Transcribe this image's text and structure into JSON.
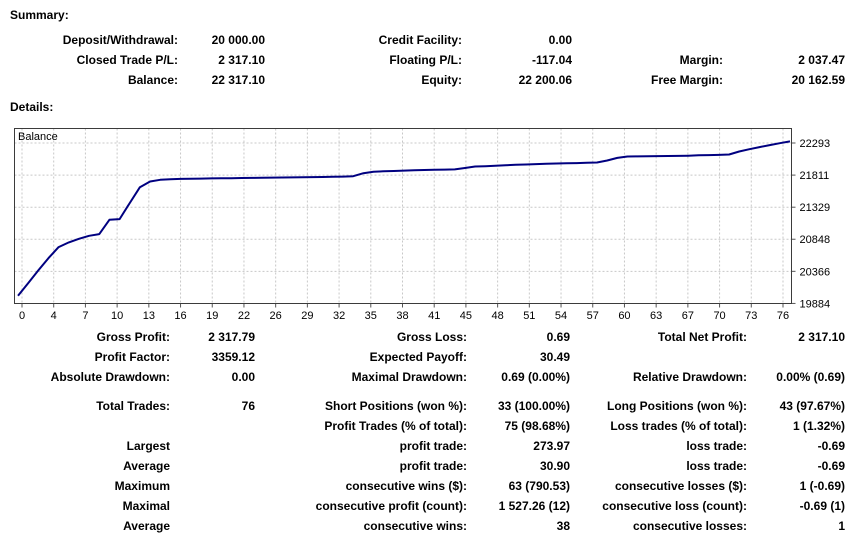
{
  "summary": {
    "heading": "Summary:",
    "rows": [
      [
        "Deposit/Withdrawal:",
        "20 000.00",
        "Credit Facility:",
        "0.00",
        "",
        ""
      ],
      [
        "Closed Trade P/L:",
        "2 317.10",
        "Floating P/L:",
        "-117.04",
        "Margin:",
        "2 037.47"
      ],
      [
        "Balance:",
        "22 317.10",
        "Equity:",
        "22 200.06",
        "Free Margin:",
        "20 162.59"
      ]
    ]
  },
  "details": {
    "heading": "Details:",
    "rows_top": [
      [
        "Gross Profit:",
        "2 317.79",
        "Gross Loss:",
        "0.69",
        "Total Net Profit:",
        "2 317.10"
      ],
      [
        "Profit Factor:",
        "3359.12",
        "Expected Payoff:",
        "30.49",
        "",
        ""
      ],
      [
        "Absolute Drawdown:",
        "0.00",
        "Maximal Drawdown:",
        "0.69 (0.00%)",
        "Relative Drawdown:",
        "0.00% (0.69)"
      ]
    ],
    "rows_bottom": [
      [
        "Total Trades:",
        "76",
        "Short Positions (won %):",
        "33 (100.00%)",
        "Long Positions (won %):",
        "43 (97.67%)"
      ],
      [
        "",
        "",
        "Profit Trades (% of total):",
        "75 (98.68%)",
        "Loss trades (% of total):",
        "1 (1.32%)"
      ],
      [
        "Largest",
        "",
        "profit trade:",
        "273.97",
        "loss trade:",
        "-0.69"
      ],
      [
        "Average",
        "",
        "profit trade:",
        "30.90",
        "loss trade:",
        "-0.69"
      ],
      [
        "Maximum",
        "",
        "consecutive wins ($):",
        "63 (790.53)",
        "consecutive losses ($):",
        "1 (-0.69)"
      ],
      [
        "Maximal",
        "",
        "consecutive profit (count):",
        "1 527.26 (12)",
        "consecutive loss (count):",
        "-0.69 (1)"
      ],
      [
        "Average",
        "",
        "consecutive wins:",
        "38",
        "consecutive losses:",
        "1"
      ]
    ]
  },
  "chart_data": {
    "type": "line",
    "title": "Balance",
    "legend_label": "Balance",
    "xlabel": "",
    "ylabel": "",
    "grid": true,
    "x_tick_labels": [
      "0",
      "4",
      "7",
      "10",
      "13",
      "16",
      "19",
      "22",
      "26",
      "29",
      "32",
      "35",
      "38",
      "41",
      "45",
      "48",
      "51",
      "54",
      "57",
      "60",
      "63",
      "67",
      "70",
      "73",
      "76"
    ],
    "y_tick_labels": [
      "22293",
      "21811",
      "21329",
      "20848",
      "20366",
      "19884"
    ],
    "y_ticks": [
      22293,
      21811,
      21329,
      20848,
      20366,
      19884
    ],
    "ylim": [
      19884,
      22517
    ],
    "xlim": [
      0,
      76
    ],
    "series": [
      {
        "name": "Balance",
        "x_start": 0,
        "values": [
          20000,
          20190,
          20380,
          20565,
          20730,
          20800,
          20855,
          20900,
          20925,
          21140,
          21150,
          21390,
          21630,
          21715,
          21740,
          21750,
          21754,
          21757,
          21759,
          21761,
          21763,
          21765,
          21767,
          21769,
          21771,
          21773,
          21775,
          21777,
          21779,
          21781,
          21783,
          21785,
          21788,
          21795,
          21840,
          21862,
          21868,
          21873,
          21878,
          21883,
          21887,
          21890,
          21893,
          21896,
          21918,
          21940,
          21945,
          21950,
          21960,
          21965,
          21970,
          21976,
          21981,
          21985,
          21988,
          21991,
          21995,
          22000,
          22030,
          22070,
          22090,
          22092,
          22094,
          22096,
          22098,
          22100,
          22102,
          22108,
          22112,
          22115,
          22120,
          22165,
          22200,
          22232,
          22262,
          22290,
          22317
        ]
      }
    ],
    "colors": {
      "line": "#000080",
      "grid": "#c8c8c8",
      "border": "#3b3b3b",
      "tick": "#555555",
      "background": "#ffffff"
    }
  }
}
